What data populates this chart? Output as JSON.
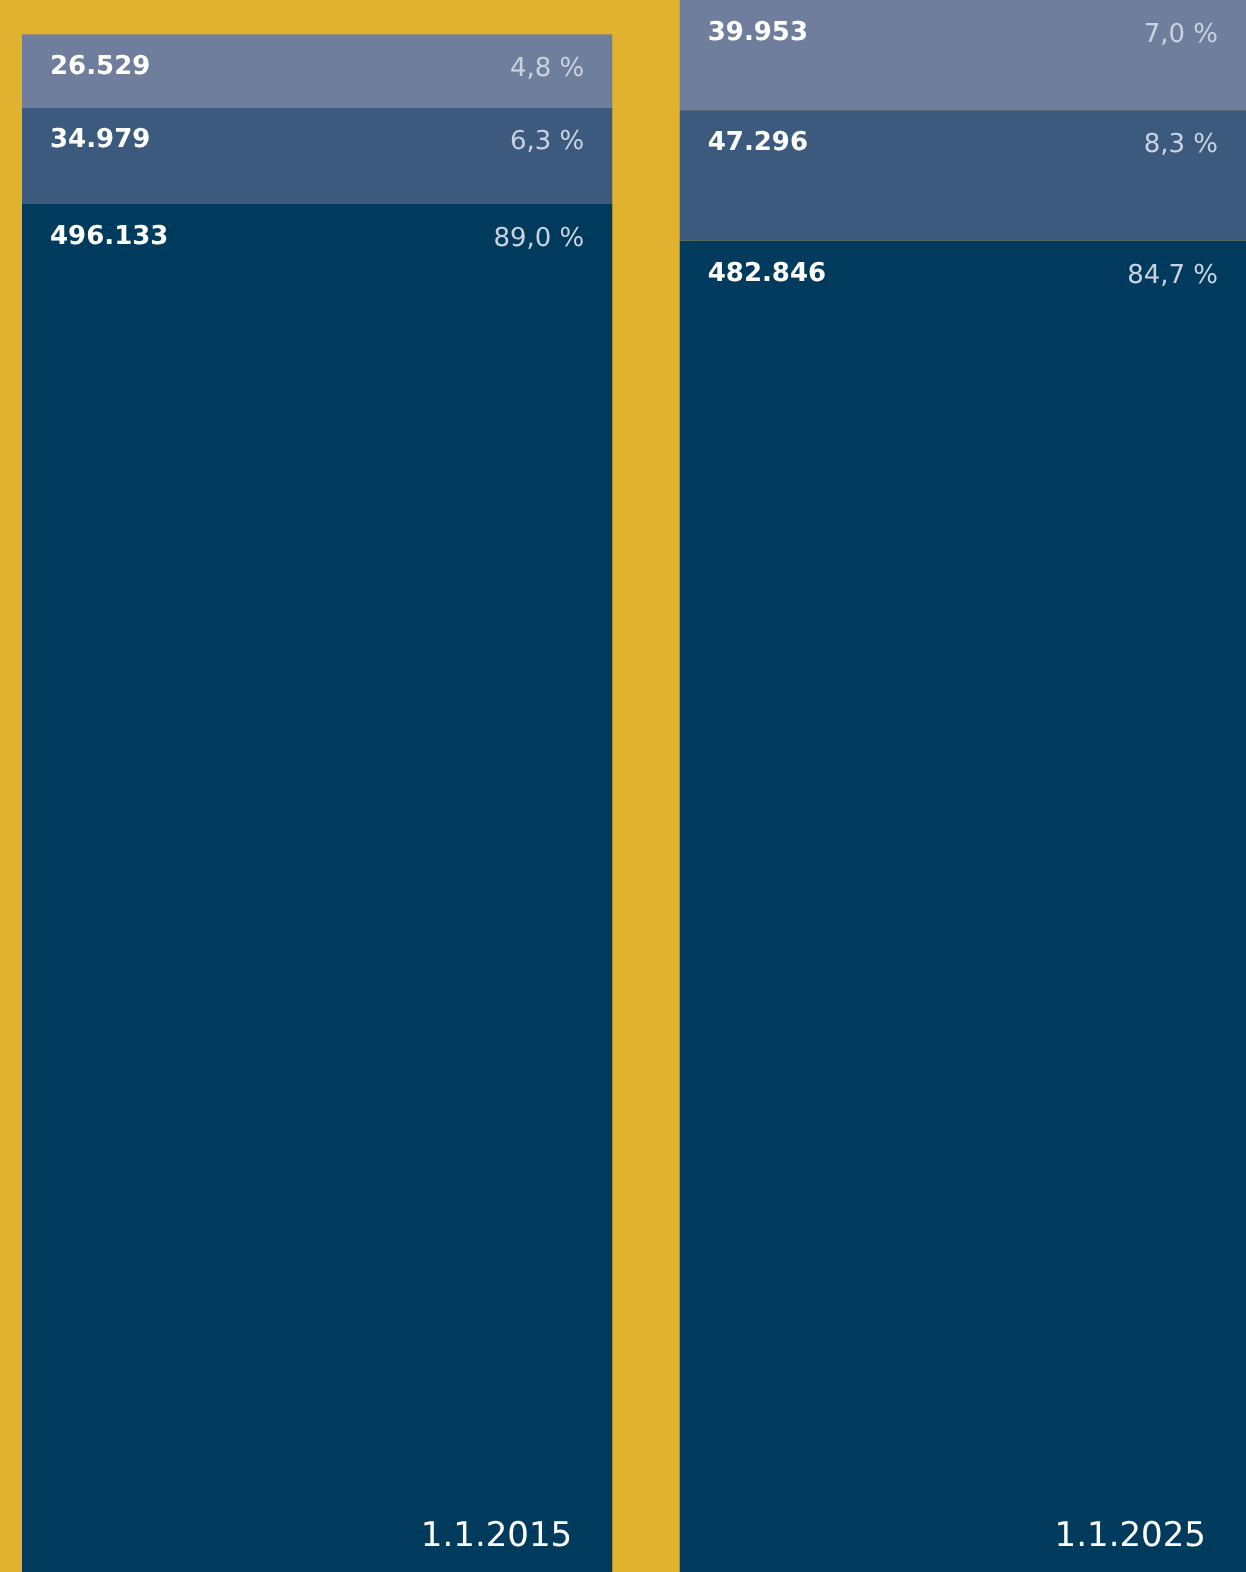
{
  "chart_data": {
    "type": "bar",
    "stacked": true,
    "categories": [
      "1.1.2015",
      "1.1.2025"
    ],
    "series": [
      {
        "color": "#003a5c",
        "values": [
          496133,
          482846
        ],
        "value_labels": [
          "496.133",
          "482.846"
        ]
      },
      {
        "color": "#3b5a7e",
        "values": [
          34979,
          47296
        ],
        "value_labels": [
          "34.979",
          "47.296"
        ]
      },
      {
        "color": "#6f7e9c",
        "values": [
          26529,
          39953
        ],
        "value_labels": [
          "26.529",
          "39.953"
        ]
      }
    ],
    "annotations": [
      {
        "text": "89,0 %",
        "x": "1.1.2015",
        "y": 496133
      },
      {
        "text": "6,3 %",
        "x": "1.1.2015",
        "y": 531112
      },
      {
        "text": "4,8 %",
        "x": "1.1.2015",
        "y": 557641
      },
      {
        "text": "84,7 %",
        "x": "1.1.2025",
        "y": 482846
      },
      {
        "text": "8,3 %",
        "x": "1.1.2025",
        "y": 530142
      },
      {
        "text": "7,0 %",
        "x": "1.1.2025",
        "y": 570095
      }
    ]
  }
}
